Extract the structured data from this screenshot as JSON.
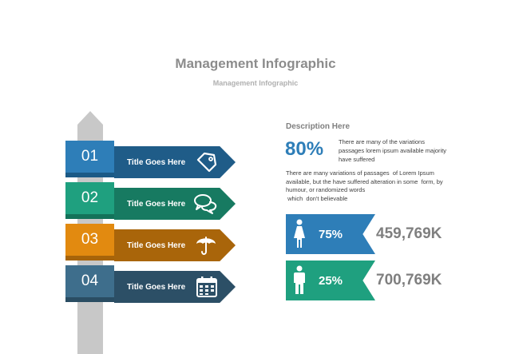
{
  "header": {
    "title": "Management Infographic",
    "subtitle": "Management Infographic"
  },
  "signpost": {
    "items": [
      {
        "number": "01",
        "title": "Title Goes Here",
        "icon": "tag-icon",
        "tab_color": "#2e7eb8",
        "arrow_color": "#1f5c88"
      },
      {
        "number": "02",
        "title": "Title Goes Here",
        "icon": "chat-bubbles-icon",
        "tab_color": "#1fa07f",
        "arrow_color": "#177a61"
      },
      {
        "number": "03",
        "title": "Title Goes Here",
        "icon": "umbrella-icon",
        "tab_color": "#e28a10",
        "arrow_color": "#a9650a"
      },
      {
        "number": "04",
        "title": "Title Goes Here",
        "icon": "calendar-icon",
        "tab_color": "#3e6e8c",
        "arrow_color": "#2c4f66"
      }
    ],
    "pole_color": "#c8c8c8"
  },
  "description": {
    "heading": "Description Here",
    "percent": "80%",
    "percent_text": "There are many of the variations passages lorem ipsum available majority have suffered",
    "paragraph": "There are many variations of passages  of Lorem Ipsum available, but the have suffered alteration in some  form, by humour, or randomized words\n which  don't believable"
  },
  "stats": [
    {
      "icon": "female-icon",
      "percent": "75%",
      "value": "459,769K",
      "color": "#2e7eb8"
    },
    {
      "icon": "male-icon",
      "percent": "25%",
      "value": "700,769K",
      "color": "#1fa07f"
    }
  ]
}
